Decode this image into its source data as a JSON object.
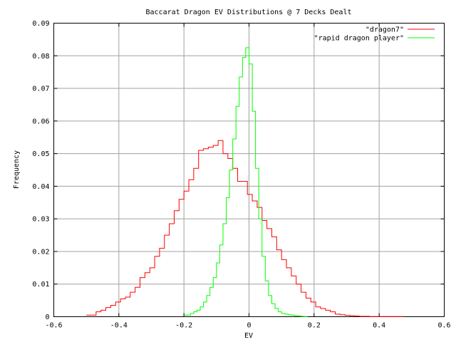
{
  "chart_data": {
    "type": "line",
    "step": true,
    "title": "Baccarat Dragon EV Distributions @ 7 Decks Dealt",
    "xlabel": "EV",
    "ylabel": "Frequency",
    "xlim": [
      -0.6,
      0.6
    ],
    "ylim": [
      0,
      0.09
    ],
    "grid": true,
    "legend_position": "top-right",
    "x_ticks": [
      "-0.6",
      "-0.4",
      "-0.2",
      "0",
      "0.2",
      "0.4",
      "0.6"
    ],
    "y_ticks": [
      "0",
      "0.01",
      "0.02",
      "0.03",
      "0.04",
      "0.05",
      "0.06",
      "0.07",
      "0.08",
      "0.09"
    ],
    "series": [
      {
        "name": "\"dragon7\"",
        "color": "#ff0000",
        "x": [
          -0.5,
          -0.485,
          -0.47,
          -0.455,
          -0.44,
          -0.425,
          -0.41,
          -0.395,
          -0.38,
          -0.365,
          -0.35,
          -0.335,
          -0.32,
          -0.305,
          -0.29,
          -0.275,
          -0.26,
          -0.245,
          -0.23,
          -0.215,
          -0.2,
          -0.185,
          -0.17,
          -0.155,
          -0.14,
          -0.125,
          -0.11,
          -0.095,
          -0.08,
          -0.065,
          -0.05,
          -0.035,
          -0.02,
          -0.005,
          0.01,
          0.025,
          0.04,
          0.055,
          0.07,
          0.085,
          0.1,
          0.115,
          0.13,
          0.145,
          0.16,
          0.175,
          0.19,
          0.205,
          0.22,
          0.235,
          0.25,
          0.265,
          0.28,
          0.295,
          0.31,
          0.325,
          0.34,
          0.355,
          0.37,
          0.385,
          0.4,
          0.415,
          0.43,
          0.445,
          0.46
        ],
        "y": [
          0.0005,
          0.0005,
          0.0015,
          0.002,
          0.0028,
          0.0035,
          0.0045,
          0.0055,
          0.006,
          0.0075,
          0.009,
          0.012,
          0.0135,
          0.015,
          0.0185,
          0.021,
          0.025,
          0.0285,
          0.0325,
          0.036,
          0.0385,
          0.042,
          0.0455,
          0.051,
          0.0515,
          0.052,
          0.0525,
          0.054,
          0.05,
          0.0485,
          0.0455,
          0.0415,
          0.0415,
          0.0375,
          0.0355,
          0.0335,
          0.0295,
          0.027,
          0.0245,
          0.0205,
          0.0175,
          0.015,
          0.0125,
          0.01,
          0.0075,
          0.0057,
          0.0045,
          0.003,
          0.0025,
          0.002,
          0.0015,
          0.0008,
          0.0006,
          0.0004,
          0.0003,
          0.0002,
          0.0001,
          0.0001,
          5e-05,
          5e-05,
          5e-05,
          5e-05,
          5e-05,
          5e-05,
          5e-05
        ]
      },
      {
        "name": "\"rapid dragon player\"",
        "color": "#00ff00",
        "x": [
          -0.2,
          -0.19,
          -0.18,
          -0.17,
          -0.16,
          -0.15,
          -0.14,
          -0.13,
          -0.12,
          -0.11,
          -0.1,
          -0.09,
          -0.08,
          -0.07,
          -0.06,
          -0.05,
          -0.04,
          -0.03,
          -0.02,
          -0.01,
          0.0,
          0.01,
          0.02,
          0.03,
          0.04,
          0.05,
          0.06,
          0.07,
          0.08,
          0.09,
          0.1,
          0.11,
          0.12,
          0.13,
          0.14,
          0.15,
          0.16,
          0.17
        ],
        "y": [
          0.0005,
          0.0005,
          0.001,
          0.0015,
          0.002,
          0.003,
          0.0045,
          0.0065,
          0.009,
          0.012,
          0.0165,
          0.022,
          0.0285,
          0.0365,
          0.045,
          0.0545,
          0.0645,
          0.0735,
          0.0795,
          0.0825,
          0.0775,
          0.063,
          0.0455,
          0.03,
          0.0185,
          0.011,
          0.0065,
          0.004,
          0.0025,
          0.0015,
          0.001,
          0.0008,
          0.0006,
          0.0005,
          0.0003,
          0.0002,
          0.0001,
          5e-05
        ]
      }
    ]
  }
}
